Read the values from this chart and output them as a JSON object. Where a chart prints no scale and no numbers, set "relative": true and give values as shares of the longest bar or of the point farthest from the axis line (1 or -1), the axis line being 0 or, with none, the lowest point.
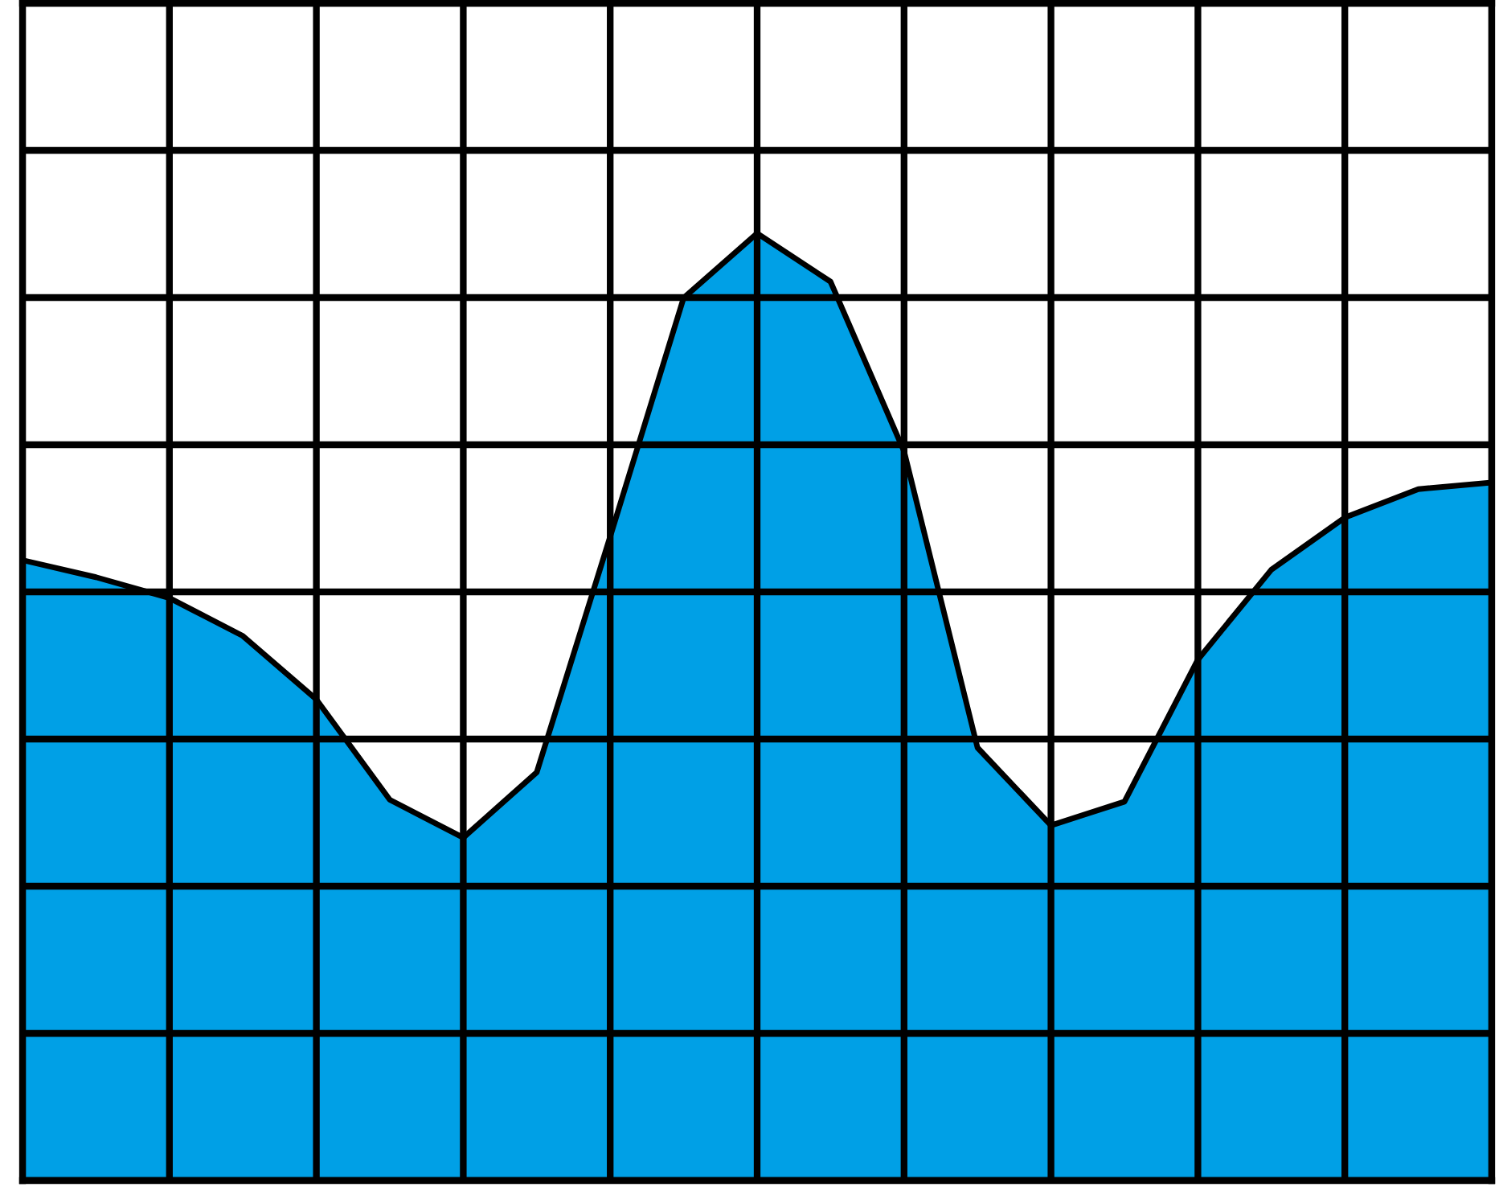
{
  "chart_data": {
    "type": "area",
    "relative": true,
    "categories": [
      null,
      null,
      null,
      null,
      null,
      null,
      null,
      null,
      null,
      null,
      null,
      null,
      null,
      null,
      null,
      null,
      null,
      null,
      null,
      null,
      null
    ],
    "series": [
      {
        "color": "#00a0e6",
        "values": [
          0.655,
          0.637,
          0.615,
          0.575,
          0.508,
          0.402,
          0.362,
          0.431,
          0.68,
          0.932,
          1.0,
          0.949,
          0.77,
          0.457,
          0.375,
          0.4,
          0.55,
          0.645,
          0.7,
          0.73,
          0.737
        ]
      }
    ],
    "grid": true,
    "tick_labels": false,
    "legend": false,
    "marker": "none",
    "line_style": "solid"
  }
}
